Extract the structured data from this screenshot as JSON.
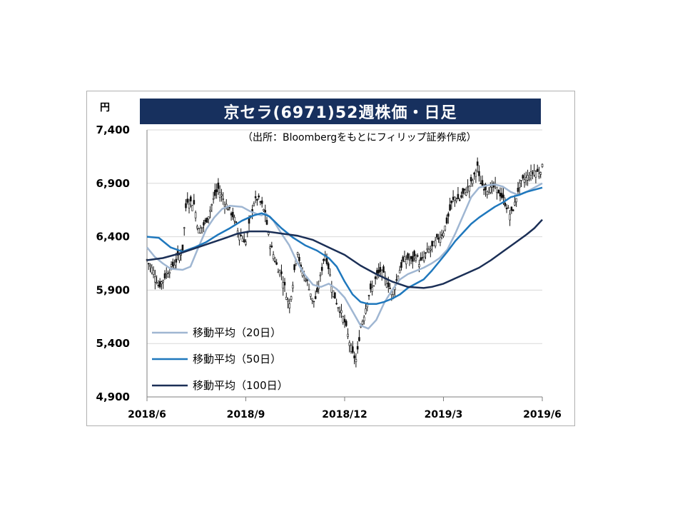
{
  "chart_data": {
    "type": "line",
    "title": "京セラ(6971)52週株価・日足",
    "unit": "円",
    "source_note": "（出所：Bloombergをもとにフィリップ証券作成）",
    "ylim": [
      4900,
      7400
    ],
    "y_ticks": [
      "7,400",
      "6,900",
      "6,400",
      "5,900",
      "5,400",
      "4,900"
    ],
    "y_tick_values": [
      7400,
      6900,
      6400,
      5900,
      5400,
      4900
    ],
    "x_ticks": [
      "2018/6",
      "2018/9",
      "2018/12",
      "2019/3",
      "2019/6"
    ],
    "grid": true,
    "legend_position": "bottom-left",
    "series": [
      {
        "name": "移動平均（20日）",
        "color": "#9fb6d2",
        "points": [
          [
            0.0,
            6300
          ],
          [
            0.02,
            6210
          ],
          [
            0.04,
            6150
          ],
          [
            0.06,
            6100
          ],
          [
            0.09,
            6090
          ],
          [
            0.11,
            6120
          ],
          [
            0.13,
            6300
          ],
          [
            0.15,
            6470
          ],
          [
            0.17,
            6580
          ],
          [
            0.19,
            6660
          ],
          [
            0.21,
            6690
          ],
          [
            0.24,
            6680
          ],
          [
            0.26,
            6640
          ],
          [
            0.28,
            6610
          ],
          [
            0.29,
            6600
          ],
          [
            0.3,
            6620
          ],
          [
            0.32,
            6550
          ],
          [
            0.34,
            6430
          ],
          [
            0.36,
            6320
          ],
          [
            0.38,
            6160
          ],
          [
            0.4,
            6040
          ],
          [
            0.42,
            5950
          ],
          [
            0.44,
            5930
          ],
          [
            0.46,
            5960
          ],
          [
            0.48,
            5910
          ],
          [
            0.5,
            5830
          ],
          [
            0.52,
            5700
          ],
          [
            0.54,
            5570
          ],
          [
            0.56,
            5540
          ],
          [
            0.58,
            5620
          ],
          [
            0.6,
            5780
          ],
          [
            0.62,
            5900
          ],
          [
            0.64,
            6000
          ],
          [
            0.66,
            6050
          ],
          [
            0.68,
            6080
          ],
          [
            0.7,
            6110
          ],
          [
            0.72,
            6150
          ],
          [
            0.74,
            6200
          ],
          [
            0.76,
            6280
          ],
          [
            0.78,
            6430
          ],
          [
            0.8,
            6600
          ],
          [
            0.82,
            6770
          ],
          [
            0.84,
            6860
          ],
          [
            0.86,
            6880
          ],
          [
            0.88,
            6890
          ],
          [
            0.9,
            6870
          ],
          [
            0.92,
            6820
          ],
          [
            0.94,
            6790
          ],
          [
            0.96,
            6820
          ],
          [
            0.98,
            6860
          ],
          [
            1.0,
            6900
          ]
        ]
      },
      {
        "name": "移動平均（50日）",
        "color": "#1f78bd",
        "points": [
          [
            0.0,
            6400
          ],
          [
            0.03,
            6390
          ],
          [
            0.06,
            6300
          ],
          [
            0.09,
            6260
          ],
          [
            0.12,
            6300
          ],
          [
            0.15,
            6350
          ],
          [
            0.18,
            6420
          ],
          [
            0.21,
            6480
          ],
          [
            0.24,
            6550
          ],
          [
            0.27,
            6600
          ],
          [
            0.29,
            6620
          ],
          [
            0.31,
            6590
          ],
          [
            0.34,
            6480
          ],
          [
            0.37,
            6390
          ],
          [
            0.4,
            6320
          ],
          [
            0.43,
            6270
          ],
          [
            0.46,
            6200
          ],
          [
            0.48,
            6120
          ],
          [
            0.5,
            5980
          ],
          [
            0.52,
            5860
          ],
          [
            0.54,
            5790
          ],
          [
            0.56,
            5770
          ],
          [
            0.58,
            5770
          ],
          [
            0.6,
            5790
          ],
          [
            0.62,
            5820
          ],
          [
            0.64,
            5860
          ],
          [
            0.66,
            5920
          ],
          [
            0.68,
            5960
          ],
          [
            0.7,
            6000
          ],
          [
            0.72,
            6080
          ],
          [
            0.74,
            6170
          ],
          [
            0.76,
            6260
          ],
          [
            0.78,
            6360
          ],
          [
            0.8,
            6440
          ],
          [
            0.82,
            6520
          ],
          [
            0.84,
            6580
          ],
          [
            0.86,
            6630
          ],
          [
            0.88,
            6680
          ],
          [
            0.9,
            6720
          ],
          [
            0.92,
            6770
          ],
          [
            0.94,
            6790
          ],
          [
            0.96,
            6820
          ],
          [
            0.98,
            6840
          ],
          [
            1.0,
            6860
          ]
        ]
      },
      {
        "name": "移動平均（100日）",
        "color": "#1b2f56",
        "points": [
          [
            0.0,
            6180
          ],
          [
            0.04,
            6200
          ],
          [
            0.08,
            6240
          ],
          [
            0.12,
            6290
          ],
          [
            0.16,
            6340
          ],
          [
            0.2,
            6390
          ],
          [
            0.23,
            6430
          ],
          [
            0.26,
            6450
          ],
          [
            0.3,
            6450
          ],
          [
            0.34,
            6430
          ],
          [
            0.38,
            6410
          ],
          [
            0.42,
            6370
          ],
          [
            0.46,
            6300
          ],
          [
            0.5,
            6230
          ],
          [
            0.54,
            6130
          ],
          [
            0.58,
            6050
          ],
          [
            0.62,
            5980
          ],
          [
            0.66,
            5930
          ],
          [
            0.7,
            5920
          ],
          [
            0.72,
            5930
          ],
          [
            0.75,
            5960
          ],
          [
            0.78,
            6010
          ],
          [
            0.81,
            6060
          ],
          [
            0.84,
            6110
          ],
          [
            0.87,
            6180
          ],
          [
            0.9,
            6260
          ],
          [
            0.93,
            6340
          ],
          [
            0.96,
            6420
          ],
          [
            0.98,
            6480
          ],
          [
            1.0,
            6560
          ]
        ]
      }
    ],
    "price_path": [
      [
        0.0,
        6180
      ],
      [
        0.02,
        6050
      ],
      [
        0.03,
        5930
      ],
      [
        0.05,
        6060
      ],
      [
        0.07,
        6150
      ],
      [
        0.09,
        6280
      ],
      [
        0.1,
        6750
      ],
      [
        0.12,
        6700
      ],
      [
        0.13,
        6450
      ],
      [
        0.15,
        6540
      ],
      [
        0.17,
        6770
      ],
      [
        0.18,
        6850
      ],
      [
        0.2,
        6700
      ],
      [
        0.22,
        6580
      ],
      [
        0.23,
        6450
      ],
      [
        0.25,
        6350
      ],
      [
        0.27,
        6720
      ],
      [
        0.28,
        6760
      ],
      [
        0.29,
        6700
      ],
      [
        0.3,
        6600
      ],
      [
        0.31,
        6350
      ],
      [
        0.32,
        6230
      ],
      [
        0.33,
        6110
      ],
      [
        0.34,
        6060
      ],
      [
        0.35,
        5900
      ],
      [
        0.36,
        5750
      ],
      [
        0.37,
        6000
      ],
      [
        0.38,
        6300
      ],
      [
        0.39,
        6080
      ],
      [
        0.4,
        6030
      ],
      [
        0.41,
        5930
      ],
      [
        0.42,
        5780
      ],
      [
        0.43,
        5850
      ],
      [
        0.44,
        6050
      ],
      [
        0.45,
        6250
      ],
      [
        0.46,
        6100
      ],
      [
        0.47,
        5900
      ],
      [
        0.48,
        5780
      ],
      [
        0.49,
        5700
      ],
      [
        0.5,
        5600
      ],
      [
        0.51,
        5450
      ],
      [
        0.52,
        5300
      ],
      [
        0.53,
        5240
      ],
      [
        0.54,
        5550
      ],
      [
        0.55,
        5680
      ],
      [
        0.56,
        5850
      ],
      [
        0.57,
        5920
      ],
      [
        0.58,
        6020
      ],
      [
        0.59,
        6080
      ],
      [
        0.6,
        6030
      ],
      [
        0.61,
        5960
      ],
      [
        0.62,
        5870
      ],
      [
        0.63,
        5980
      ],
      [
        0.64,
        6100
      ],
      [
        0.65,
        6180
      ],
      [
        0.66,
        6200
      ],
      [
        0.67,
        6170
      ],
      [
        0.68,
        6230
      ],
      [
        0.69,
        6150
      ],
      [
        0.7,
        6200
      ],
      [
        0.71,
        6270
      ],
      [
        0.72,
        6290
      ],
      [
        0.73,
        6350
      ],
      [
        0.74,
        6400
      ],
      [
        0.75,
        6450
      ],
      [
        0.76,
        6560
      ],
      [
        0.77,
        6700
      ],
      [
        0.78,
        6780
      ],
      [
        0.79,
        6740
      ],
      [
        0.8,
        6800
      ],
      [
        0.81,
        6850
      ],
      [
        0.82,
        6900
      ],
      [
        0.83,
        6980
      ],
      [
        0.835,
        7100
      ],
      [
        0.84,
        6950
      ],
      [
        0.85,
        6870
      ],
      [
        0.86,
        6850
      ],
      [
        0.87,
        6840
      ],
      [
        0.88,
        6870
      ],
      [
        0.89,
        6820
      ],
      [
        0.9,
        6760
      ],
      [
        0.91,
        6680
      ],
      [
        0.92,
        6600
      ],
      [
        0.93,
        6700
      ],
      [
        0.94,
        6860
      ],
      [
        0.95,
        6920
      ],
      [
        0.96,
        6950
      ],
      [
        0.97,
        6980
      ],
      [
        0.98,
        7020
      ],
      [
        0.99,
        7000
      ],
      [
        1.0,
        7050
      ]
    ]
  }
}
